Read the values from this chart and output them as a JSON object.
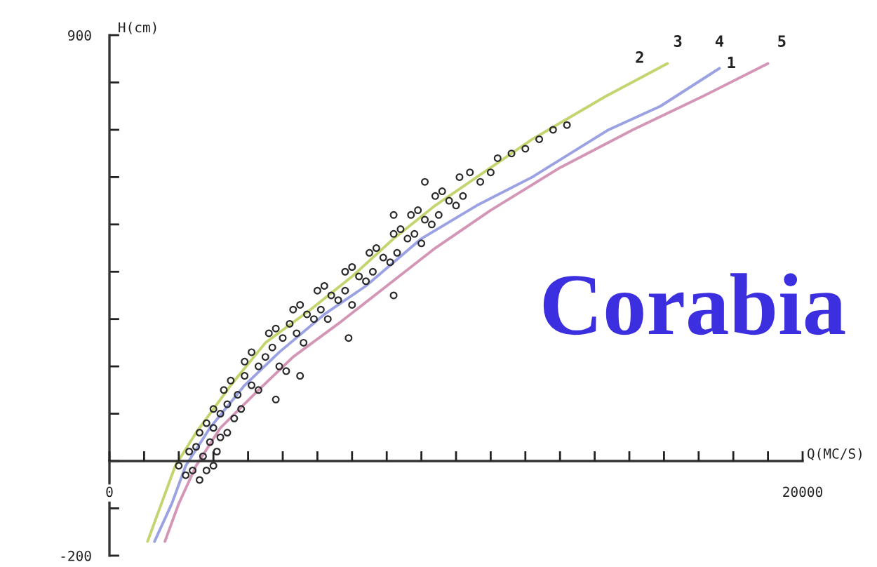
{
  "chart_data": {
    "type": "scatter",
    "xlabel": "Q(MC/S)",
    "ylabel": "H(cm)",
    "xlim": [
      0,
      20000
    ],
    "ylim": [
      -200,
      900
    ],
    "xticks": [
      0,
      {
        "value": 1000,
        "label": null
      },
      {
        "value": 2000,
        "label": null
      },
      {
        "value": 3000,
        "label": null
      },
      {
        "value": 4000,
        "label": null
      },
      {
        "value": 5000,
        "label": null
      },
      {
        "value": 6000,
        "label": null
      },
      {
        "value": 7000,
        "label": null
      },
      {
        "value": 8000,
        "label": null
      },
      {
        "value": 9000,
        "label": null
      },
      {
        "value": 10000,
        "label": null
      },
      {
        "value": 11000,
        "label": null
      },
      {
        "value": 12000,
        "label": null
      },
      {
        "value": 13000,
        "label": null
      },
      {
        "value": 14000,
        "label": null
      },
      {
        "value": 15000,
        "label": null
      },
      {
        "value": 16000,
        "label": null
      },
      {
        "value": 17000,
        "label": null
      },
      {
        "value": 18000,
        "label": null
      },
      {
        "value": 19000,
        "label": null
      },
      20000
    ],
    "yticks": [
      -200,
      {
        "value": -100,
        "label": null
      },
      {
        "value": 0,
        "label": null
      },
      {
        "value": 100,
        "label": null
      },
      {
        "value": 200,
        "label": null
      },
      {
        "value": 300,
        "label": null
      },
      {
        "value": 400,
        "label": null
      },
      {
        "value": 500,
        "label": null
      },
      {
        "value": 600,
        "label": null
      },
      {
        "value": 700,
        "label": null
      },
      {
        "value": 800,
        "label": null
      },
      900
    ],
    "series": [
      {
        "color": "#2a2a2a",
        "marker": "circle",
        "x": [
          2000,
          2200,
          2400,
          2600,
          2800,
          3000,
          2300,
          2500,
          2700,
          2900,
          3100,
          2600,
          2800,
          3000,
          3200,
          3400,
          3000,
          3200,
          3400,
          3600,
          3800,
          3300,
          3500,
          3700,
          3900,
          4100,
          4300,
          3900,
          4100,
          4300,
          4500,
          4700,
          4900,
          5100,
          4600,
          4800,
          5000,
          5200,
          5400,
          5600,
          5300,
          5500,
          5700,
          5900,
          6100,
          6300,
          6000,
          6200,
          6400,
          6600,
          6800,
          7000,
          6800,
          7000,
          7200,
          7400,
          7600,
          7500,
          7700,
          7900,
          8100,
          8300,
          8200,
          8400,
          8600,
          8800,
          9000,
          8700,
          8900,
          9100,
          9300,
          9500,
          9400,
          9600,
          9800,
          10000,
          10200,
          10100,
          10400,
          10700,
          11000,
          11200,
          11600,
          12000,
          12400,
          12800,
          13200,
          9100,
          8200,
          5500,
          4800,
          6900,
          8200
        ],
        "values": [
          -10,
          -30,
          -20,
          -40,
          -20,
          -10,
          20,
          30,
          10,
          40,
          20,
          60,
          80,
          70,
          50,
          60,
          110,
          100,
          120,
          90,
          110,
          150,
          170,
          140,
          180,
          160,
          150,
          210,
          230,
          200,
          220,
          240,
          200,
          190,
          270,
          280,
          260,
          290,
          270,
          250,
          320,
          330,
          310,
          300,
          320,
          300,
          360,
          370,
          350,
          340,
          360,
          330,
          400,
          410,
          390,
          380,
          400,
          440,
          450,
          430,
          420,
          440,
          480,
          490,
          470,
          480,
          460,
          520,
          530,
          510,
          500,
          520,
          560,
          570,
          550,
          540,
          560,
          600,
          610,
          590,
          610,
          640,
          650,
          660,
          680,
          700,
          710,
          590,
          520,
          180,
          130,
          260,
          350
        ]
      },
      {
        "type": "line",
        "color": "#c4d46e",
        "x": [
          1100,
          1500,
          1900,
          2500,
          3500,
          4500,
          5800,
          7000,
          8200,
          9400,
          10600,
          12200,
          14300,
          16100
        ],
        "values": [
          -170,
          -90,
          -10,
          60,
          160,
          250,
          320,
          390,
          470,
          540,
          600,
          680,
          770,
          840
        ]
      },
      {
        "type": "line",
        "color": "#9aa2e4",
        "x": [
          1300,
          1800,
          2200,
          2900,
          3900,
          4900,
          6200,
          7400,
          9000,
          10600,
          12200,
          14400,
          15900,
          17600
        ],
        "values": [
          -170,
          -90,
          -10,
          70,
          160,
          230,
          310,
          370,
          470,
          540,
          600,
          700,
          750,
          830
        ]
      },
      {
        "type": "line",
        "color": "#d496b6",
        "x": [
          1600,
          2000,
          2500,
          3200,
          4300,
          5300,
          6600,
          8000,
          9400,
          11000,
          13000,
          15100,
          17100,
          19000
        ],
        "values": [
          -170,
          -90,
          -10,
          70,
          150,
          220,
          290,
          370,
          450,
          530,
          620,
          700,
          770,
          840
        ]
      }
    ],
    "annotations": [
      "Corabia",
      "2",
      "3",
      "4",
      "1",
      "5"
    ]
  }
}
